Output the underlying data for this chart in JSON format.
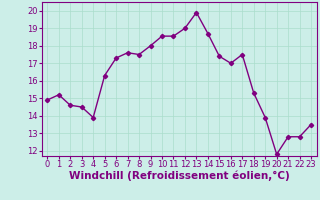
{
  "x": [
    0,
    1,
    2,
    3,
    4,
    5,
    6,
    7,
    8,
    9,
    10,
    11,
    12,
    13,
    14,
    15,
    16,
    17,
    18,
    19,
    20,
    21,
    22,
    23
  ],
  "y": [
    14.9,
    15.2,
    14.6,
    14.5,
    13.9,
    16.3,
    17.3,
    17.6,
    17.5,
    18.0,
    18.55,
    18.55,
    19.0,
    19.9,
    18.7,
    17.4,
    17.0,
    17.5,
    15.3,
    13.9,
    11.8,
    12.8,
    12.8,
    13.5
  ],
  "line_color": "#800080",
  "marker": "D",
  "marker_size": 2.2,
  "line_width": 1.0,
  "background_color": "#cceee8",
  "grid_color": "#aaddcc",
  "xlabel": "Windchill (Refroidissement éolien,°C)",
  "xlabel_fontsize": 7.5,
  "xlabel_color": "#800080",
  "xlim": [
    -0.5,
    23.5
  ],
  "ylim": [
    11.7,
    20.5
  ],
  "yticks": [
    12,
    13,
    14,
    15,
    16,
    17,
    18,
    19,
    20
  ],
  "xticks": [
    0,
    1,
    2,
    3,
    4,
    5,
    6,
    7,
    8,
    9,
    10,
    11,
    12,
    13,
    14,
    15,
    16,
    17,
    18,
    19,
    20,
    21,
    22,
    23
  ],
  "tick_fontsize": 6.0,
  "tick_color": "#800080"
}
